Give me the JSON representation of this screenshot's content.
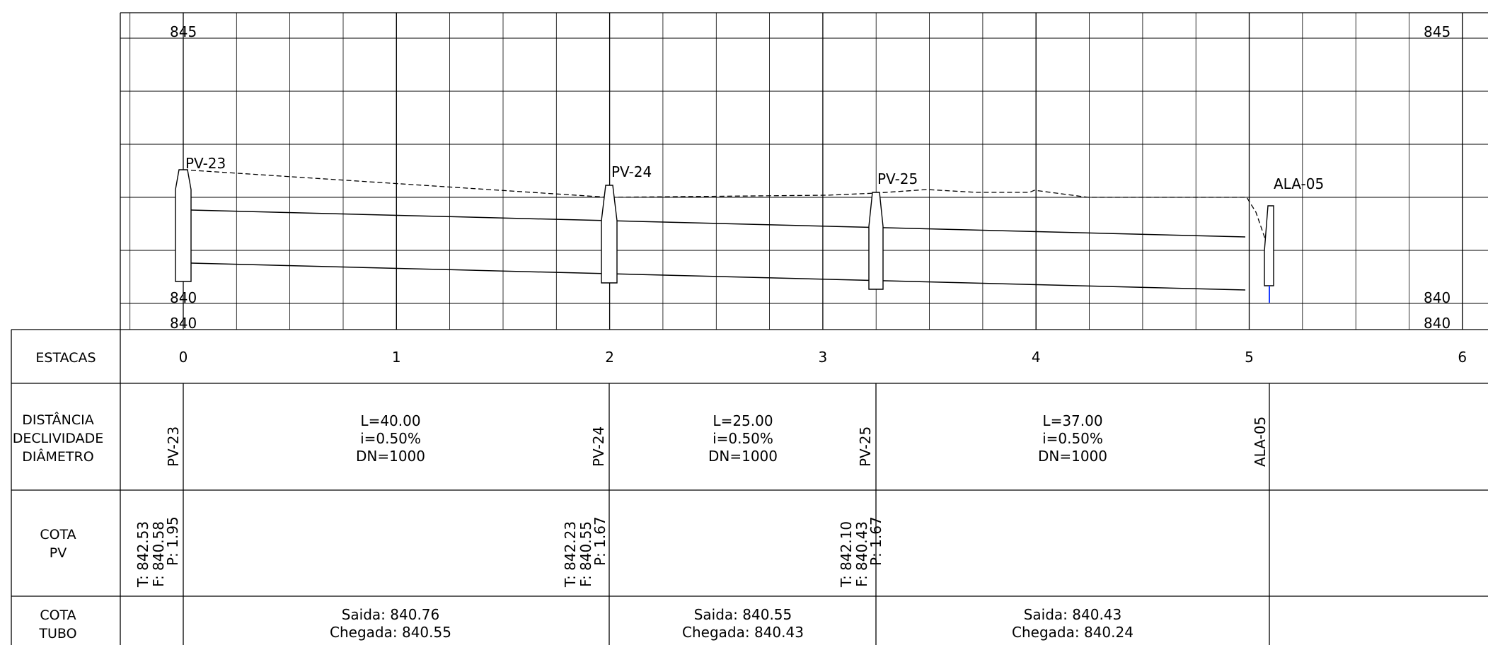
{
  "elevation_labels": {
    "top": "845",
    "bottom": "840"
  },
  "stations": [
    "0",
    "1",
    "2",
    "3",
    "4",
    "5",
    "6"
  ],
  "row_headers": {
    "estacas": [
      "ESTACAS"
    ],
    "distancia": [
      "DISTÂNCIA",
      "DECLIVIDADE",
      "DIÂMETRO"
    ],
    "cota_pv": [
      "COTA",
      "PV"
    ],
    "cota_tubo": [
      "COTA",
      "TUBO"
    ]
  },
  "manholes": [
    {
      "id": "PV-23",
      "station": 0,
      "ground": 842.53,
      "invert": 840.58,
      "depth_label": "P: 1.95",
      "top_label": "T: 842.53",
      "bottom_label": "F: 840.58"
    },
    {
      "id": "PV-24",
      "station": 2,
      "ground": 842.23,
      "invert": 840.55,
      "depth_label": "P: 1.67",
      "top_label": "T: 842.23",
      "bottom_label": "F: 840.55"
    },
    {
      "id": "PV-25",
      "station": 3.25,
      "ground": 842.1,
      "invert": 840.43,
      "depth_label": "P: 1.67",
      "top_label": "T: 842.10",
      "bottom_label": "F: 840.43"
    },
    {
      "id": "ALA-05",
      "station": 5.1
    }
  ],
  "segments": [
    {
      "length": "L=40.00",
      "slope": "i=0.50%",
      "dn": "DN=1000",
      "saida": "Saida: 840.76",
      "chegada": "Chegada: 840.55"
    },
    {
      "length": "L=25.00",
      "slope": "i=0.50%",
      "dn": "DN=1000",
      "saida": "Saida: 840.55",
      "chegada": "Chegada: 840.43"
    },
    {
      "length": "L=37.00",
      "slope": "i=0.50%",
      "dn": "DN=1000",
      "saida": "Saida: 840.43",
      "chegada": "Chegada: 840.24"
    }
  ],
  "colors": {
    "line": "#000000",
    "grid": "#000000",
    "marker": "#1a3cff"
  }
}
